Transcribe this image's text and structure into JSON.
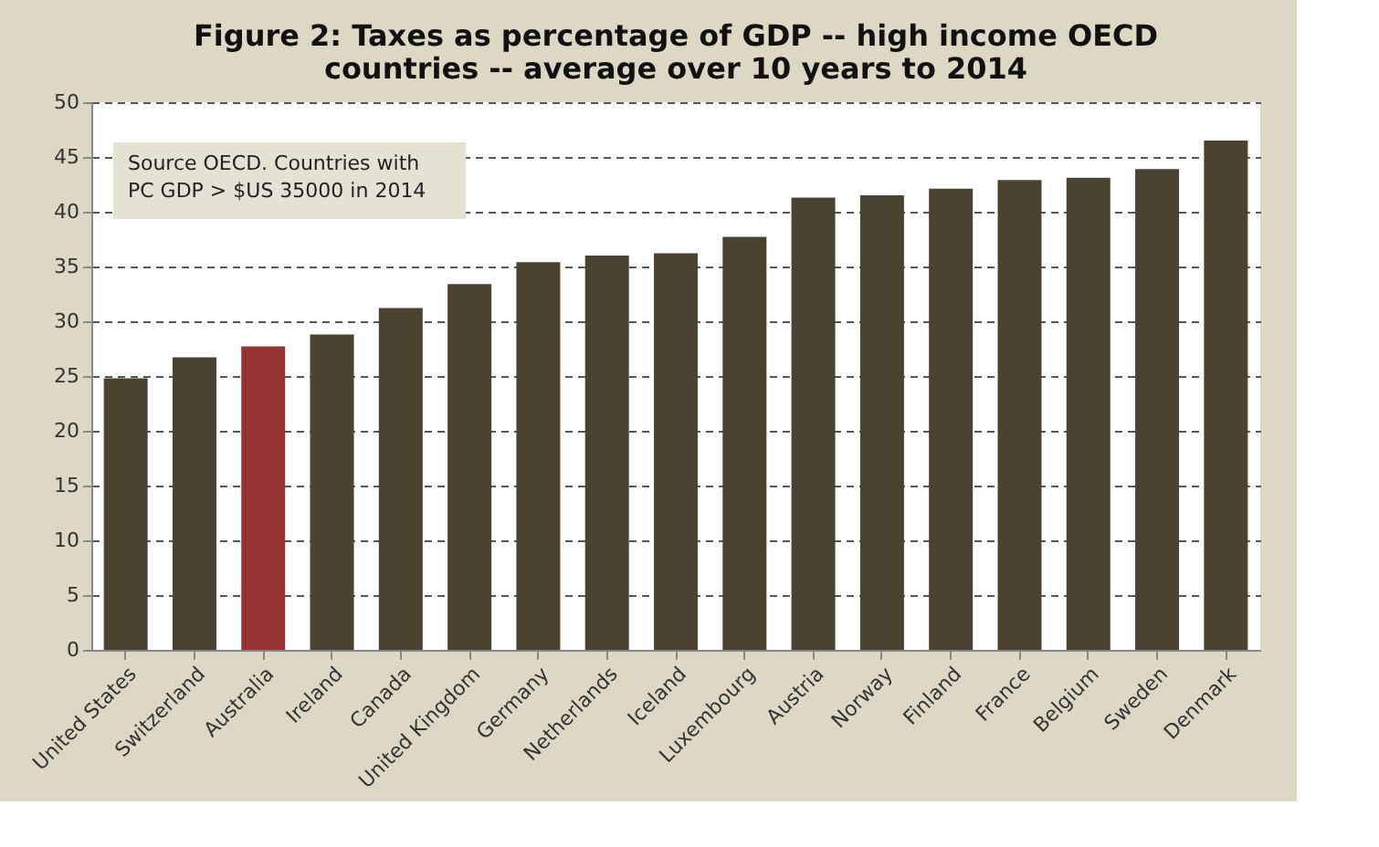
{
  "chart_data": {
    "type": "bar",
    "title": [
      "Figure 2: Taxes as percentage of GDP -- high income OECD",
      "countries -- average over 10 years to 2014"
    ],
    "categories": [
      "United States",
      "Switzerland",
      "Australia",
      "Ireland",
      "Canada",
      "United Kingdom",
      "Germany",
      "Netherlands",
      "Iceland",
      "Luxembourg",
      "Austria",
      "Norway",
      "Finland",
      "France",
      "Belgium",
      "Sweden",
      "Denmark"
    ],
    "values": [
      24.8,
      26.7,
      27.7,
      28.8,
      31.2,
      33.4,
      35.4,
      36.0,
      36.2,
      37.7,
      41.3,
      41.5,
      42.1,
      42.9,
      43.1,
      43.9,
      46.5
    ],
    "colors": [
      "#4a4330",
      "#4a4330",
      "#993333",
      "#4a4330",
      "#4a4330",
      "#4a4330",
      "#4a4330",
      "#4a4330",
      "#4a4330",
      "#4a4330",
      "#4a4330",
      "#4a4330",
      "#4a4330",
      "#4a4330",
      "#4a4330",
      "#4a4330",
      "#4a4330"
    ],
    "ylim": [
      0,
      50
    ],
    "yticks": [
      0,
      5,
      10,
      15,
      20,
      25,
      30,
      35,
      40,
      45,
      50
    ],
    "grid": "y",
    "annotations": [
      "Source OECD.  Countries with\nPC GDP > $US 35000  in 2014"
    ]
  }
}
